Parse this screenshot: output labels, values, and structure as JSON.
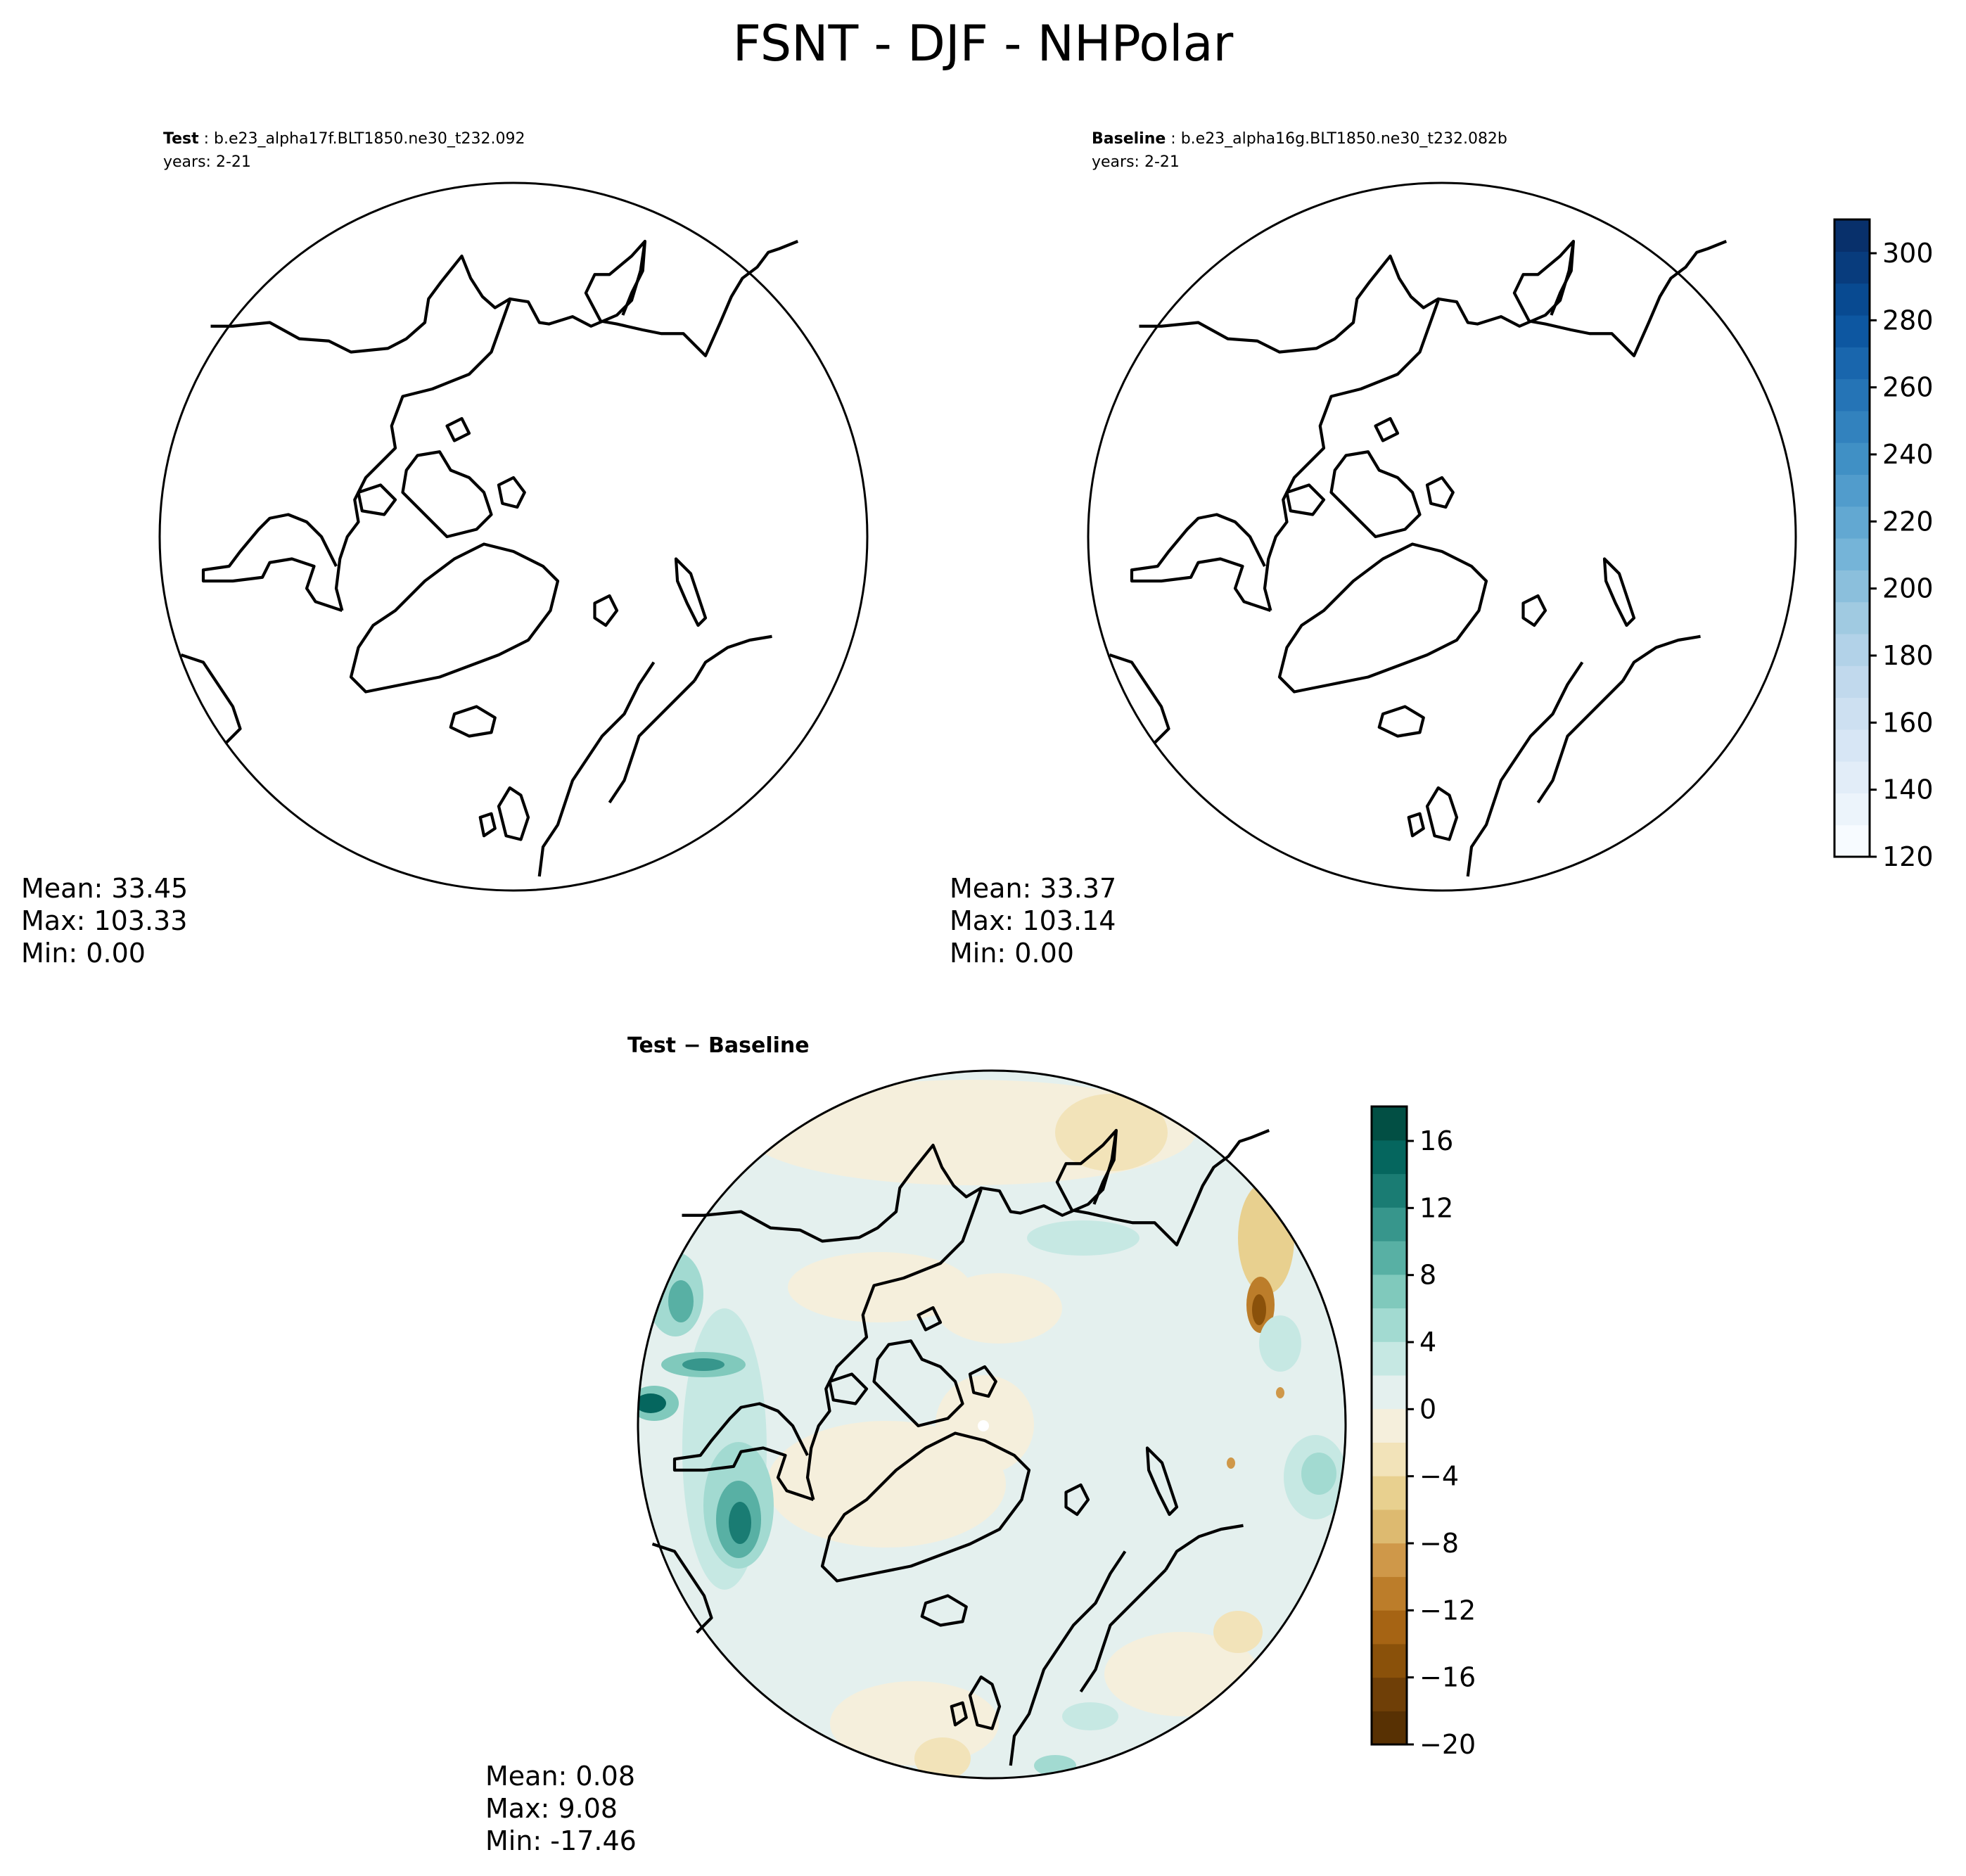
{
  "figure": {
    "title": "FSNT - DJF - NHPolar"
  },
  "panels": [
    {
      "id": "test",
      "label_bold": "Test",
      "label_rest": " : b.e23_alpha17f.BLT1850.ne30_t232.092",
      "years": "years: 2-21",
      "stats": {
        "mean": "Mean: 33.45",
        "max": "Max: 103.33",
        "min": "Min:  0.00"
      }
    },
    {
      "id": "baseline",
      "label_bold": "Baseline",
      "label_rest": " : b.e23_alpha16g.BLT1850.ne30_t232.082b",
      "years": "years: 2-21",
      "stats": {
        "mean": "Mean: 33.37",
        "max": "Max: 103.14",
        "min": "Min:  0.00"
      }
    },
    {
      "id": "diff",
      "label_bold": "Test − Baseline",
      "stats": {
        "mean": "Mean:  0.08",
        "max": "Max:  9.08",
        "min": "Min: -17.46"
      }
    }
  ],
  "colorbars": {
    "main": {
      "colormap": "Blues",
      "ticks": [
        "300",
        "280",
        "260",
        "240",
        "220",
        "200",
        "180",
        "160",
        "140",
        "120"
      ],
      "colors": [
        "#f7fbff",
        "#ecf4fb",
        "#e2edf8",
        "#d7e6f5",
        "#cde0f1",
        "#c1d9ed",
        "#b2d2e8",
        "#a0cae1",
        "#8bbfdc",
        "#75b4d8",
        "#62a8d2",
        "#519ccc",
        "#4090c5",
        "#3282be",
        "#2574b6",
        "#1966ad",
        "#0d57a1",
        "#084a91",
        "#083c7d",
        "#08306b"
      ]
    },
    "diff": {
      "colormap": "BrBG",
      "ticks": [
        "16",
        "12",
        "8",
        "4",
        "0",
        "−4",
        "−8",
        "−12",
        "−16",
        "−20"
      ],
      "colors": [
        "#583103",
        "#6f3f07",
        "#8a510a",
        "#a66414",
        "#bc7d2a",
        "#cf9849",
        "#ddba70",
        "#e8d08f",
        "#f2e3b9",
        "#f5efdc",
        "#e4f0ee",
        "#c6e8e3",
        "#a2dad1",
        "#80c9bc",
        "#58b0a4",
        "#37968c",
        "#1a7c73",
        "#05665e",
        "#024f44"
      ]
    }
  }
}
